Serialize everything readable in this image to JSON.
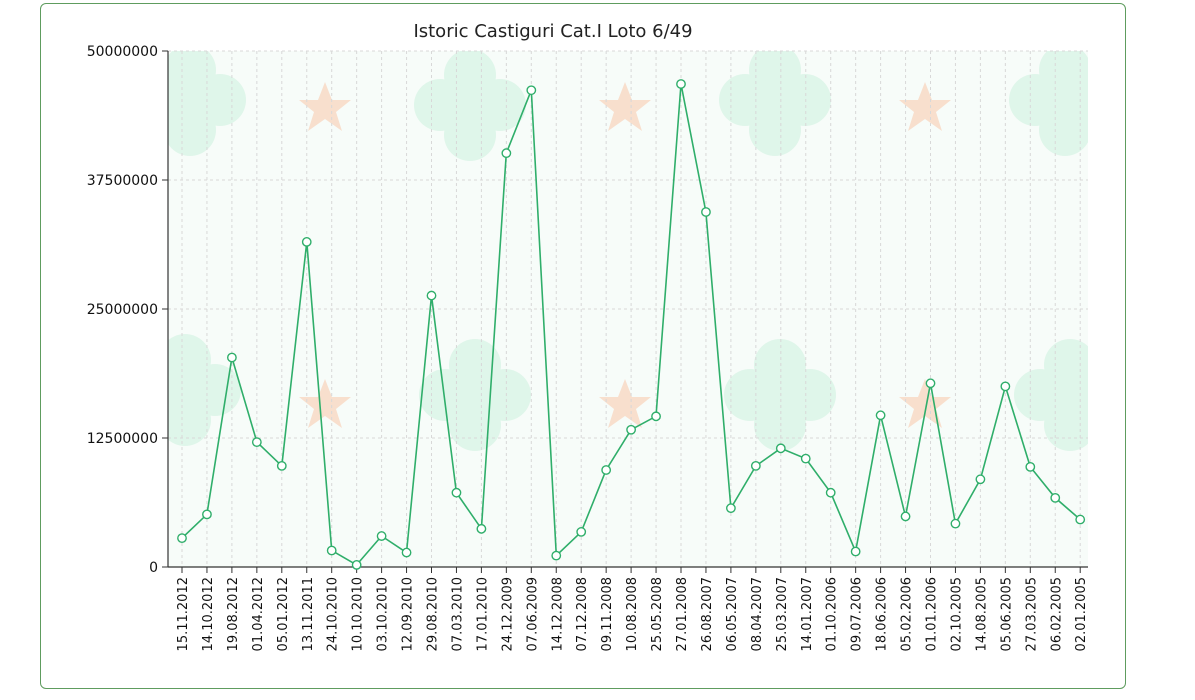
{
  "colors": {
    "line": "#2fae6a",
    "marker_fill": "#ffffff",
    "panel_border": "#5e9c5e",
    "plot_background": "#f7fcf9",
    "grid": "#d8d8d8"
  },
  "chart_data": {
    "type": "line",
    "title": "Istoric Castiguri Cat.I Loto 6/49",
    "xlabel": "",
    "ylabel": "",
    "ylim": [
      0,
      50000000
    ],
    "yticks": [
      0,
      12500000,
      25000000,
      37500000,
      50000000
    ],
    "ytick_labels": [
      "0",
      "12500000",
      "25000000",
      "37500000",
      "50000000"
    ],
    "grid": true,
    "legend": "none",
    "categories": [
      "15.11.2012",
      "14.10.2012",
      "19.08.2012",
      "01.04.2012",
      "05.01.2012",
      "13.11.2011",
      "24.10.2010",
      "10.10.2010",
      "03.10.2010",
      "12.09.2010",
      "29.08.2010",
      "07.03.2010",
      "17.01.2010",
      "24.12.2009",
      "07.06.2009",
      "14.12.2008",
      "07.12.2008",
      "09.11.2008",
      "10.08.2008",
      "25.05.2008",
      "27.01.2008",
      "26.08.2007",
      "06.05.2007",
      "08.04.2007",
      "25.03.2007",
      "14.01.2007",
      "01.10.2006",
      "09.07.2006",
      "18.06.2006",
      "05.02.2006",
      "01.01.2006",
      "02.10.2005",
      "14.08.2005",
      "05.06.2005",
      "27.03.2005",
      "06.02.2005",
      "02.01.2005"
    ],
    "series": [
      {
        "values": [
          2800000,
          5100000,
          20300000,
          12100000,
          9800000,
          31500000,
          1600000,
          200000,
          3000000,
          1400000,
          26300000,
          7200000,
          3700000,
          40100000,
          46200000,
          1100000,
          3400000,
          9400000,
          13300000,
          14600000,
          46800000,
          34400000,
          5700000,
          9800000,
          11500000,
          10500000,
          7200000,
          1500000,
          14700000,
          4900000,
          17800000,
          4200000,
          8500000,
          17500000,
          9700000,
          6700000,
          4600000
        ]
      }
    ]
  }
}
